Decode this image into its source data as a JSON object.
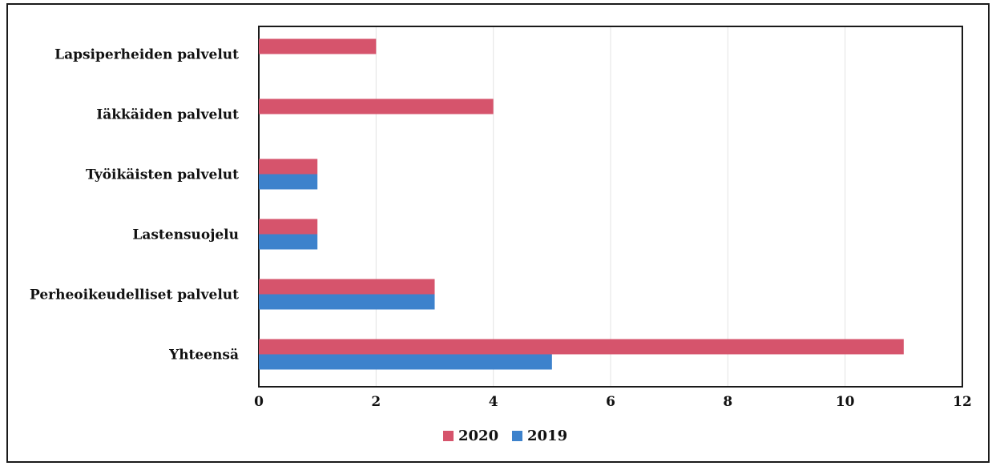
{
  "chart_data": {
    "type": "bar",
    "orientation": "horizontal",
    "categories": [
      "Lapsiperheiden palvelut",
      "Iäkkäiden palvelut",
      "Työikäisten palvelut",
      "Lastensuojelu",
      "Perheoikeudelliset palvelut",
      "Yhteensä"
    ],
    "series": [
      {
        "name": "2020",
        "color": "#d6546c",
        "values": [
          2,
          4,
          1,
          1,
          3,
          11
        ]
      },
      {
        "name": "2019",
        "color": "#3d82cc",
        "values": [
          0,
          0,
          1,
          1,
          3,
          5
        ]
      }
    ],
    "xticks": [
      "0",
      "2",
      "4",
      "6",
      "8",
      "10",
      "12"
    ],
    "xlim": [
      0,
      12
    ],
    "grid": "vertical",
    "legend": "bottom"
  }
}
